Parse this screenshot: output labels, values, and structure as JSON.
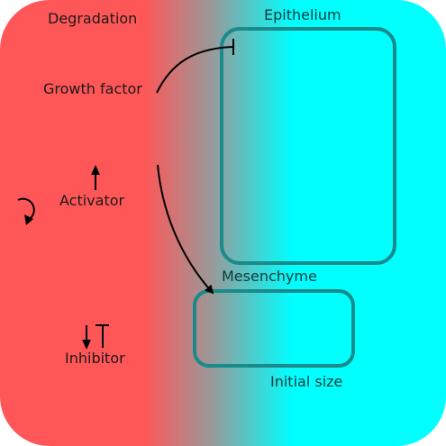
{
  "diagram": {
    "labels": {
      "degradation": "Degradation",
      "epithelium": "Epithelium",
      "growth_factor": "Growth factor",
      "activator": "Activator",
      "mesenchyme": "Mesenchyme",
      "inhibitor": "Inhibitor",
      "initial_size": "Initial size"
    },
    "colors": {
      "degradation_zone": "#ff5757",
      "mid_gradient": "#999999",
      "epithelium_zone": "#00ffff",
      "tissue_outline": "#1a8a8a",
      "arrow": "#000000"
    },
    "icons": {
      "rotate": "rotate-ccw-icon",
      "activator_up": "arrow-up-icon",
      "inhibitor_down": "arrow-down-icon",
      "inhibitor_t": "t-bar-inhibit-icon"
    }
  }
}
